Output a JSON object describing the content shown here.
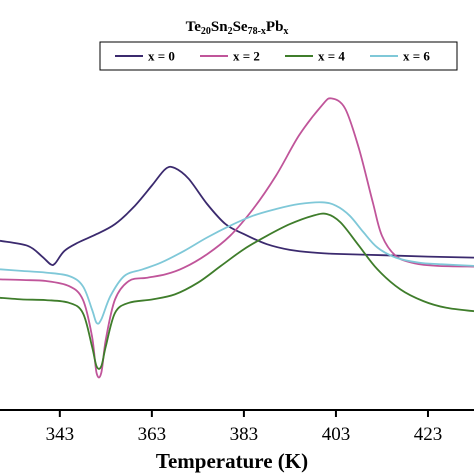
{
  "chart_data": {
    "type": "line",
    "title": {
      "prefix": "Te",
      "sub1": "20",
      "mid1": "Sn",
      "sub2": "2",
      "mid2": "Se",
      "sub3": "78-x",
      "mid3": "Pb",
      "sub4": "x"
    },
    "xlabel": "Temperature (K)",
    "ylabel": "",
    "xlim": [
      330,
      433
    ],
    "ylim": [
      0,
      10
    ],
    "xticks": [
      343,
      363,
      383,
      403,
      423
    ],
    "legend": "top",
    "grid": false,
    "series": [
      {
        "name": "x = 0",
        "color": "#3b2a6e",
        "points": [
          [
            330,
            5.05
          ],
          [
            336,
            4.9
          ],
          [
            339,
            4.6
          ],
          [
            341,
            4.35
          ],
          [
            342,
            4.38
          ],
          [
            344,
            4.75
          ],
          [
            347,
            5.0
          ],
          [
            351,
            5.25
          ],
          [
            355,
            5.55
          ],
          [
            359,
            6.05
          ],
          [
            363,
            6.7
          ],
          [
            366,
            7.2
          ],
          [
            368,
            7.22
          ],
          [
            371,
            6.9
          ],
          [
            375,
            6.15
          ],
          [
            379,
            5.55
          ],
          [
            383,
            5.25
          ],
          [
            388,
            4.95
          ],
          [
            393,
            4.78
          ],
          [
            398,
            4.7
          ],
          [
            403,
            4.66
          ],
          [
            413,
            4.62
          ],
          [
            423,
            4.58
          ],
          [
            433,
            4.55
          ]
        ]
      },
      {
        "name": "x = 2",
        "color": "#c0559a",
        "points": [
          [
            330,
            3.9
          ],
          [
            335,
            3.88
          ],
          [
            340,
            3.85
          ],
          [
            345,
            3.7
          ],
          [
            348,
            3.3
          ],
          [
            350,
            2.2
          ],
          [
            351,
            1.1
          ],
          [
            352,
            1.1
          ],
          [
            353,
            2.1
          ],
          [
            355,
            3.3
          ],
          [
            358,
            3.85
          ],
          [
            362,
            3.95
          ],
          [
            366,
            4.05
          ],
          [
            370,
            4.25
          ],
          [
            375,
            4.65
          ],
          [
            380,
            5.2
          ],
          [
            385,
            6.0
          ],
          [
            390,
            7.0
          ],
          [
            395,
            8.2
          ],
          [
            400,
            9.1
          ],
          [
            402,
            9.3
          ],
          [
            405,
            9.0
          ],
          [
            408,
            7.8
          ],
          [
            411,
            6.2
          ],
          [
            413,
            5.2
          ],
          [
            416,
            4.6
          ],
          [
            420,
            4.38
          ],
          [
            425,
            4.3
          ],
          [
            433,
            4.28
          ]
        ]
      },
      {
        "name": "x = 4",
        "color": "#3f7d2b",
        "points": [
          [
            330,
            3.35
          ],
          [
            335,
            3.3
          ],
          [
            340,
            3.28
          ],
          [
            345,
            3.2
          ],
          [
            348,
            2.9
          ],
          [
            350,
            1.9
          ],
          [
            351,
            1.3
          ],
          [
            352,
            1.3
          ],
          [
            353,
            1.9
          ],
          [
            355,
            2.9
          ],
          [
            358,
            3.2
          ],
          [
            363,
            3.3
          ],
          [
            368,
            3.45
          ],
          [
            373,
            3.8
          ],
          [
            378,
            4.3
          ],
          [
            383,
            4.8
          ],
          [
            388,
            5.2
          ],
          [
            393,
            5.55
          ],
          [
            398,
            5.8
          ],
          [
            401,
            5.85
          ],
          [
            404,
            5.6
          ],
          [
            408,
            4.9
          ],
          [
            412,
            4.2
          ],
          [
            417,
            3.6
          ],
          [
            422,
            3.25
          ],
          [
            427,
            3.05
          ],
          [
            433,
            2.95
          ]
        ]
      },
      {
        "name": "x = 6",
        "color": "#7fc8d8",
        "points": [
          [
            330,
            4.2
          ],
          [
            335,
            4.15
          ],
          [
            340,
            4.1
          ],
          [
            345,
            4.0
          ],
          [
            348,
            3.7
          ],
          [
            350,
            3.0
          ],
          [
            351,
            2.6
          ],
          [
            352,
            2.7
          ],
          [
            354,
            3.4
          ],
          [
            357,
            4.0
          ],
          [
            361,
            4.2
          ],
          [
            365,
            4.4
          ],
          [
            370,
            4.75
          ],
          [
            375,
            5.15
          ],
          [
            380,
            5.5
          ],
          [
            385,
            5.8
          ],
          [
            390,
            6.0
          ],
          [
            395,
            6.15
          ],
          [
            400,
            6.2
          ],
          [
            403,
            6.1
          ],
          [
            406,
            5.8
          ],
          [
            409,
            5.3
          ],
          [
            412,
            4.85
          ],
          [
            416,
            4.55
          ],
          [
            421,
            4.4
          ],
          [
            426,
            4.35
          ],
          [
            433,
            4.3
          ]
        ]
      }
    ]
  }
}
